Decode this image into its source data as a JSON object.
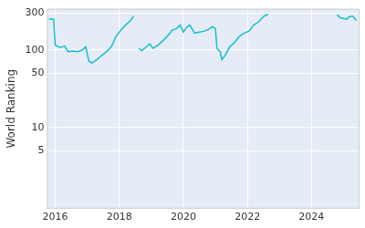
{
  "chart_data": {
    "type": "line",
    "y_label": "World Ranking",
    "log": "y",
    "grid": true,
    "color": "#17becf",
    "x": [
      2015.8,
      2015.95,
      2016.0,
      2016.15,
      2016.3,
      2016.4,
      2016.55,
      2016.7,
      2016.85,
      2016.95,
      2017.05,
      2017.15,
      2017.3,
      2017.45,
      2017.6,
      2017.75,
      2017.9,
      2018.05,
      2018.2,
      2018.35,
      2018.45,
      2018.5,
      2018.6,
      2018.7,
      2018.85,
      2018.95,
      2019.05,
      2019.2,
      2019.35,
      2019.5,
      2019.65,
      2019.8,
      2019.9,
      2020.0,
      2020.1,
      2020.2,
      2020.35,
      2020.5,
      2020.65,
      2020.8,
      2020.9,
      2021.0,
      2021.05,
      2021.15,
      2021.2,
      2021.3,
      2021.45,
      2021.6,
      2021.75,
      2021.9,
      2022.05,
      2022.2,
      2022.35,
      2022.5,
      2022.65,
      2022.7,
      2024.8,
      2024.9,
      2025.0,
      2025.1,
      2025.2,
      2025.3,
      2025.4
    ],
    "values": [
      250,
      250,
      115,
      108,
      112,
      95,
      97,
      95,
      100,
      110,
      72,
      68,
      75,
      85,
      95,
      110,
      150,
      180,
      210,
      240,
      275,
      null,
      105,
      98,
      110,
      120,
      105,
      115,
      130,
      150,
      180,
      190,
      210,
      170,
      195,
      210,
      165,
      170,
      175,
      185,
      200,
      190,
      105,
      95,
      75,
      85,
      110,
      125,
      150,
      165,
      175,
      210,
      230,
      270,
      290,
      null,
      285,
      260,
      255,
      250,
      270,
      270,
      240
    ],
    "xlim": [
      2015.74,
      2025.5
    ],
    "xticks": [
      2016,
      2018,
      2020,
      2022,
      2024
    ],
    "ylim": [
      0.9,
      340
    ],
    "yticks": [
      5,
      10,
      50,
      100,
      300
    ]
  }
}
